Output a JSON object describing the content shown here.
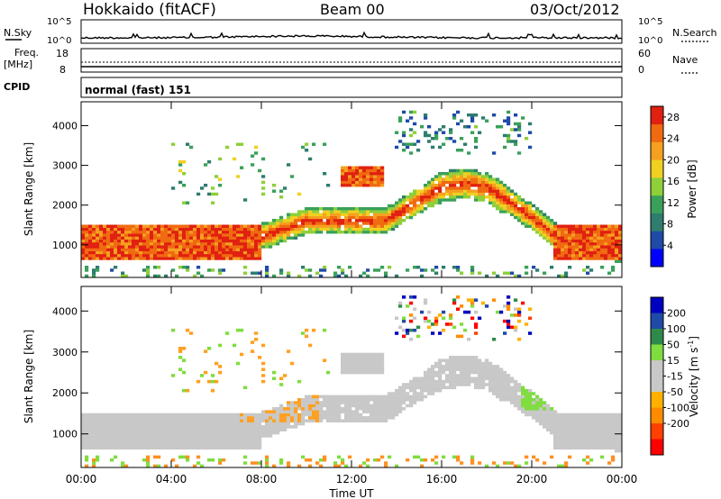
{
  "header": {
    "station": "Hokkaido (fitACF)",
    "beam": "Beam 00",
    "date": "03/Oct/2012"
  },
  "noise_panel": {
    "left_label": "N.Sky",
    "right_label": "N.Search",
    "left_ticks": [
      "10^5",
      "10^0"
    ],
    "right_ticks": [
      "10^5",
      "10^0"
    ]
  },
  "freq_panel": {
    "left_label": "Freq.",
    "left_unit": "[MHz]",
    "left_ticks": [
      "18",
      "8"
    ],
    "right_label": "Nave",
    "right_ticks": [
      "60",
      "0"
    ]
  },
  "cpid": {
    "label": "CPID",
    "value": "normal (fast) 151"
  },
  "colors": {
    "power": [
      "#0000ff",
      "#1f4aa8",
      "#2e7d6e",
      "#3aa05a",
      "#8fcf3a",
      "#f0d020",
      "#f5a020",
      "#f06a10",
      "#e02010"
    ],
    "velocity": [
      "#ff0000",
      "#ff4000",
      "#ff8c00",
      "#ffb000",
      "#c8c8c8",
      "#c8c8c8",
      "#7fdd3f",
      "#2e8a4a",
      "#1f4aa8",
      "#0000c0"
    ]
  },
  "chart_data": [
    {
      "type": "heatmap",
      "name": "Power",
      "xlabel": "",
      "ylabel": "Slant Range [km]",
      "xlim": [
        "00:00",
        "24:00"
      ],
      "ylim": [
        180,
        4600
      ],
      "yticks": [
        "1000",
        "2000",
        "3000",
        "4000"
      ],
      "xticks": [
        "00:00",
        "04:00",
        "08:00",
        "12:00",
        "16:00",
        "20:00",
        "00:00"
      ],
      "colorbar": {
        "label": "Power [dB]",
        "ticks": [
          "4",
          "8",
          "12",
          "16",
          "20",
          "24",
          "28"
        ],
        "range": [
          0,
          30
        ]
      },
      "features": [
        {
          "kind": "main_band",
          "hours": [
            0,
            4,
            8,
            10,
            13.5,
            16,
            17,
            18,
            20,
            21.5,
            24
          ],
          "center_km": [
            1050,
            1050,
            1200,
            1600,
            1600,
            2450,
            2550,
            2450,
            1700,
            1000,
            900
          ],
          "peak_power_db": 29
        },
        {
          "kind": "patch",
          "hours": [
            11.5,
            13.5
          ],
          "range_km": [
            2450,
            2950
          ],
          "peak_power_db": 29
        },
        {
          "kind": "far_range_echoes",
          "hours": [
            14,
            20
          ],
          "range_km": [
            3300,
            4400
          ],
          "peak_power_db": 10
        }
      ]
    },
    {
      "type": "heatmap",
      "name": "Velocity",
      "xlabel": "Time UT",
      "ylabel": "Slant Range [km]",
      "xlim": [
        "00:00",
        "24:00"
      ],
      "ylim": [
        180,
        4600
      ],
      "yticks": [
        "1000",
        "2000",
        "3000",
        "4000"
      ],
      "xticks": [
        "00:00",
        "04:00",
        "08:00",
        "12:00",
        "16:00",
        "20:00",
        "00:00"
      ],
      "colorbar": {
        "label": "Velocity [m s^-1]",
        "ticks": [
          "200",
          "100",
          "50",
          "15",
          "-15",
          "-50",
          "-100",
          "-200"
        ],
        "range": [
          -250,
          250
        ]
      },
      "features": [
        {
          "kind": "ground_scatter_band",
          "hours": [
            0,
            24
          ],
          "velocity_ms": 0
        },
        {
          "kind": "positive_patch",
          "hours": [
            19.5,
            21
          ],
          "range_km": [
            1600,
            2300
          ],
          "velocity_ms": 60
        },
        {
          "kind": "mixed_far_echoes",
          "hours": [
            15,
            18
          ],
          "range_km": [
            3800,
            4400
          ],
          "velocity_ms": [
            -200,
            200
          ]
        }
      ]
    }
  ]
}
